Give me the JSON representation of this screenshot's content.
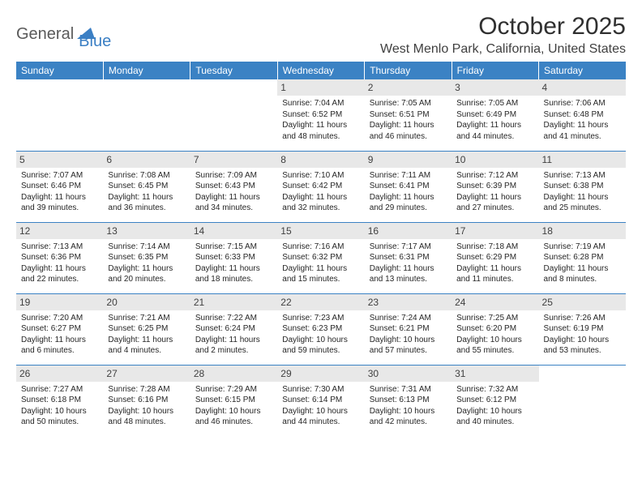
{
  "logo": {
    "text1": "General",
    "text2": "Blue"
  },
  "title": "October 2025",
  "subtitle": "West Menlo Park, California, United States",
  "colors": {
    "header_bg": "#3b82c4",
    "header_text": "#ffffff",
    "daynum_bg": "#e8e8e8",
    "row_border": "#3b82c4",
    "logo_gray": "#5a5a5a",
    "logo_blue": "#3b7fc4",
    "text": "#262626",
    "page_bg": "#ffffff"
  },
  "typography": {
    "title_fontsize": 30,
    "subtitle_fontsize": 16,
    "header_fontsize": 12,
    "daynum_fontsize": 12,
    "cell_fontsize": 10
  },
  "columns": [
    "Sunday",
    "Monday",
    "Tuesday",
    "Wednesday",
    "Thursday",
    "Friday",
    "Saturday"
  ],
  "weeks": [
    [
      null,
      null,
      null,
      {
        "n": "1",
        "sr": "7:04 AM",
        "ss": "6:52 PM",
        "dl": "11 hours and 48 minutes."
      },
      {
        "n": "2",
        "sr": "7:05 AM",
        "ss": "6:51 PM",
        "dl": "11 hours and 46 minutes."
      },
      {
        "n": "3",
        "sr": "7:05 AM",
        "ss": "6:49 PM",
        "dl": "11 hours and 44 minutes."
      },
      {
        "n": "4",
        "sr": "7:06 AM",
        "ss": "6:48 PM",
        "dl": "11 hours and 41 minutes."
      }
    ],
    [
      {
        "n": "5",
        "sr": "7:07 AM",
        "ss": "6:46 PM",
        "dl": "11 hours and 39 minutes."
      },
      {
        "n": "6",
        "sr": "7:08 AM",
        "ss": "6:45 PM",
        "dl": "11 hours and 36 minutes."
      },
      {
        "n": "7",
        "sr": "7:09 AM",
        "ss": "6:43 PM",
        "dl": "11 hours and 34 minutes."
      },
      {
        "n": "8",
        "sr": "7:10 AM",
        "ss": "6:42 PM",
        "dl": "11 hours and 32 minutes."
      },
      {
        "n": "9",
        "sr": "7:11 AM",
        "ss": "6:41 PM",
        "dl": "11 hours and 29 minutes."
      },
      {
        "n": "10",
        "sr": "7:12 AM",
        "ss": "6:39 PM",
        "dl": "11 hours and 27 minutes."
      },
      {
        "n": "11",
        "sr": "7:13 AM",
        "ss": "6:38 PM",
        "dl": "11 hours and 25 minutes."
      }
    ],
    [
      {
        "n": "12",
        "sr": "7:13 AM",
        "ss": "6:36 PM",
        "dl": "11 hours and 22 minutes."
      },
      {
        "n": "13",
        "sr": "7:14 AM",
        "ss": "6:35 PM",
        "dl": "11 hours and 20 minutes."
      },
      {
        "n": "14",
        "sr": "7:15 AM",
        "ss": "6:33 PM",
        "dl": "11 hours and 18 minutes."
      },
      {
        "n": "15",
        "sr": "7:16 AM",
        "ss": "6:32 PM",
        "dl": "11 hours and 15 minutes."
      },
      {
        "n": "16",
        "sr": "7:17 AM",
        "ss": "6:31 PM",
        "dl": "11 hours and 13 minutes."
      },
      {
        "n": "17",
        "sr": "7:18 AM",
        "ss": "6:29 PM",
        "dl": "11 hours and 11 minutes."
      },
      {
        "n": "18",
        "sr": "7:19 AM",
        "ss": "6:28 PM",
        "dl": "11 hours and 8 minutes."
      }
    ],
    [
      {
        "n": "19",
        "sr": "7:20 AM",
        "ss": "6:27 PM",
        "dl": "11 hours and 6 minutes."
      },
      {
        "n": "20",
        "sr": "7:21 AM",
        "ss": "6:25 PM",
        "dl": "11 hours and 4 minutes."
      },
      {
        "n": "21",
        "sr": "7:22 AM",
        "ss": "6:24 PM",
        "dl": "11 hours and 2 minutes."
      },
      {
        "n": "22",
        "sr": "7:23 AM",
        "ss": "6:23 PM",
        "dl": "10 hours and 59 minutes."
      },
      {
        "n": "23",
        "sr": "7:24 AM",
        "ss": "6:21 PM",
        "dl": "10 hours and 57 minutes."
      },
      {
        "n": "24",
        "sr": "7:25 AM",
        "ss": "6:20 PM",
        "dl": "10 hours and 55 minutes."
      },
      {
        "n": "25",
        "sr": "7:26 AM",
        "ss": "6:19 PM",
        "dl": "10 hours and 53 minutes."
      }
    ],
    [
      {
        "n": "26",
        "sr": "7:27 AM",
        "ss": "6:18 PM",
        "dl": "10 hours and 50 minutes."
      },
      {
        "n": "27",
        "sr": "7:28 AM",
        "ss": "6:16 PM",
        "dl": "10 hours and 48 minutes."
      },
      {
        "n": "28",
        "sr": "7:29 AM",
        "ss": "6:15 PM",
        "dl": "10 hours and 46 minutes."
      },
      {
        "n": "29",
        "sr": "7:30 AM",
        "ss": "6:14 PM",
        "dl": "10 hours and 44 minutes."
      },
      {
        "n": "30",
        "sr": "7:31 AM",
        "ss": "6:13 PM",
        "dl": "10 hours and 42 minutes."
      },
      {
        "n": "31",
        "sr": "7:32 AM",
        "ss": "6:12 PM",
        "dl": "10 hours and 40 minutes."
      },
      null
    ]
  ],
  "labels": {
    "sunrise": "Sunrise: ",
    "sunset": "Sunset: ",
    "daylight": "Daylight: "
  }
}
